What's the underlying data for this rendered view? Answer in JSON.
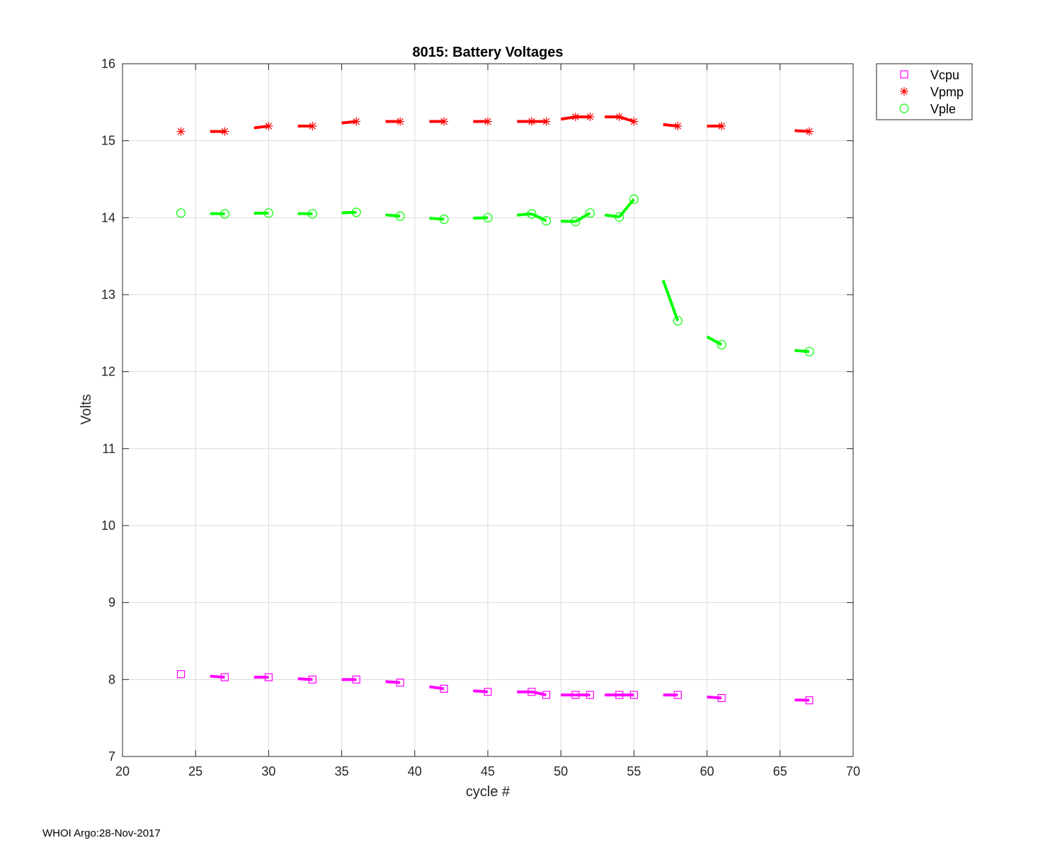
{
  "footer": {
    "text": "WHOI Argo:28-Nov-2017"
  },
  "chart_data": {
    "type": "scatter",
    "title": "8015: Battery Voltages",
    "xlabel": "cycle #",
    "ylabel": "Volts",
    "xlim": [
      20,
      70
    ],
    "ylim": [
      7,
      16
    ],
    "xticks": [
      20,
      25,
      30,
      35,
      40,
      45,
      50,
      55,
      60,
      65,
      70
    ],
    "yticks": [
      7,
      8,
      9,
      10,
      11,
      12,
      13,
      14,
      15,
      16
    ],
    "grid": true,
    "legend_position": "outside-top-right",
    "x": [
      24,
      27,
      30,
      33,
      36,
      39,
      42,
      45,
      48,
      49,
      51,
      52,
      54,
      55,
      58,
      61,
      67
    ],
    "series": [
      {
        "name": "Vcpu",
        "color": "#ff00ff",
        "marker": "square",
        "values": [
          8.07,
          8.03,
          8.03,
          8.0,
          8.0,
          7.96,
          7.88,
          7.84,
          7.84,
          7.8,
          7.8,
          7.8,
          7.8,
          7.8,
          7.8,
          7.76,
          7.73
        ]
      },
      {
        "name": "Vpmp",
        "color": "#ff0000",
        "marker": "asterisk",
        "values": [
          15.12,
          15.12,
          15.19,
          15.19,
          15.25,
          15.25,
          15.25,
          15.25,
          15.25,
          15.25,
          15.31,
          15.31,
          15.31,
          15.25,
          15.19,
          15.19,
          15.12
        ]
      },
      {
        "name": "Vple",
        "color": "#00ff00",
        "marker": "circle",
        "values": [
          14.06,
          14.05,
          14.06,
          14.05,
          14.07,
          14.02,
          13.98,
          14.0,
          14.05,
          13.96,
          13.95,
          14.06,
          14.01,
          14.24,
          12.66,
          12.35,
          12.26
        ]
      }
    ]
  }
}
